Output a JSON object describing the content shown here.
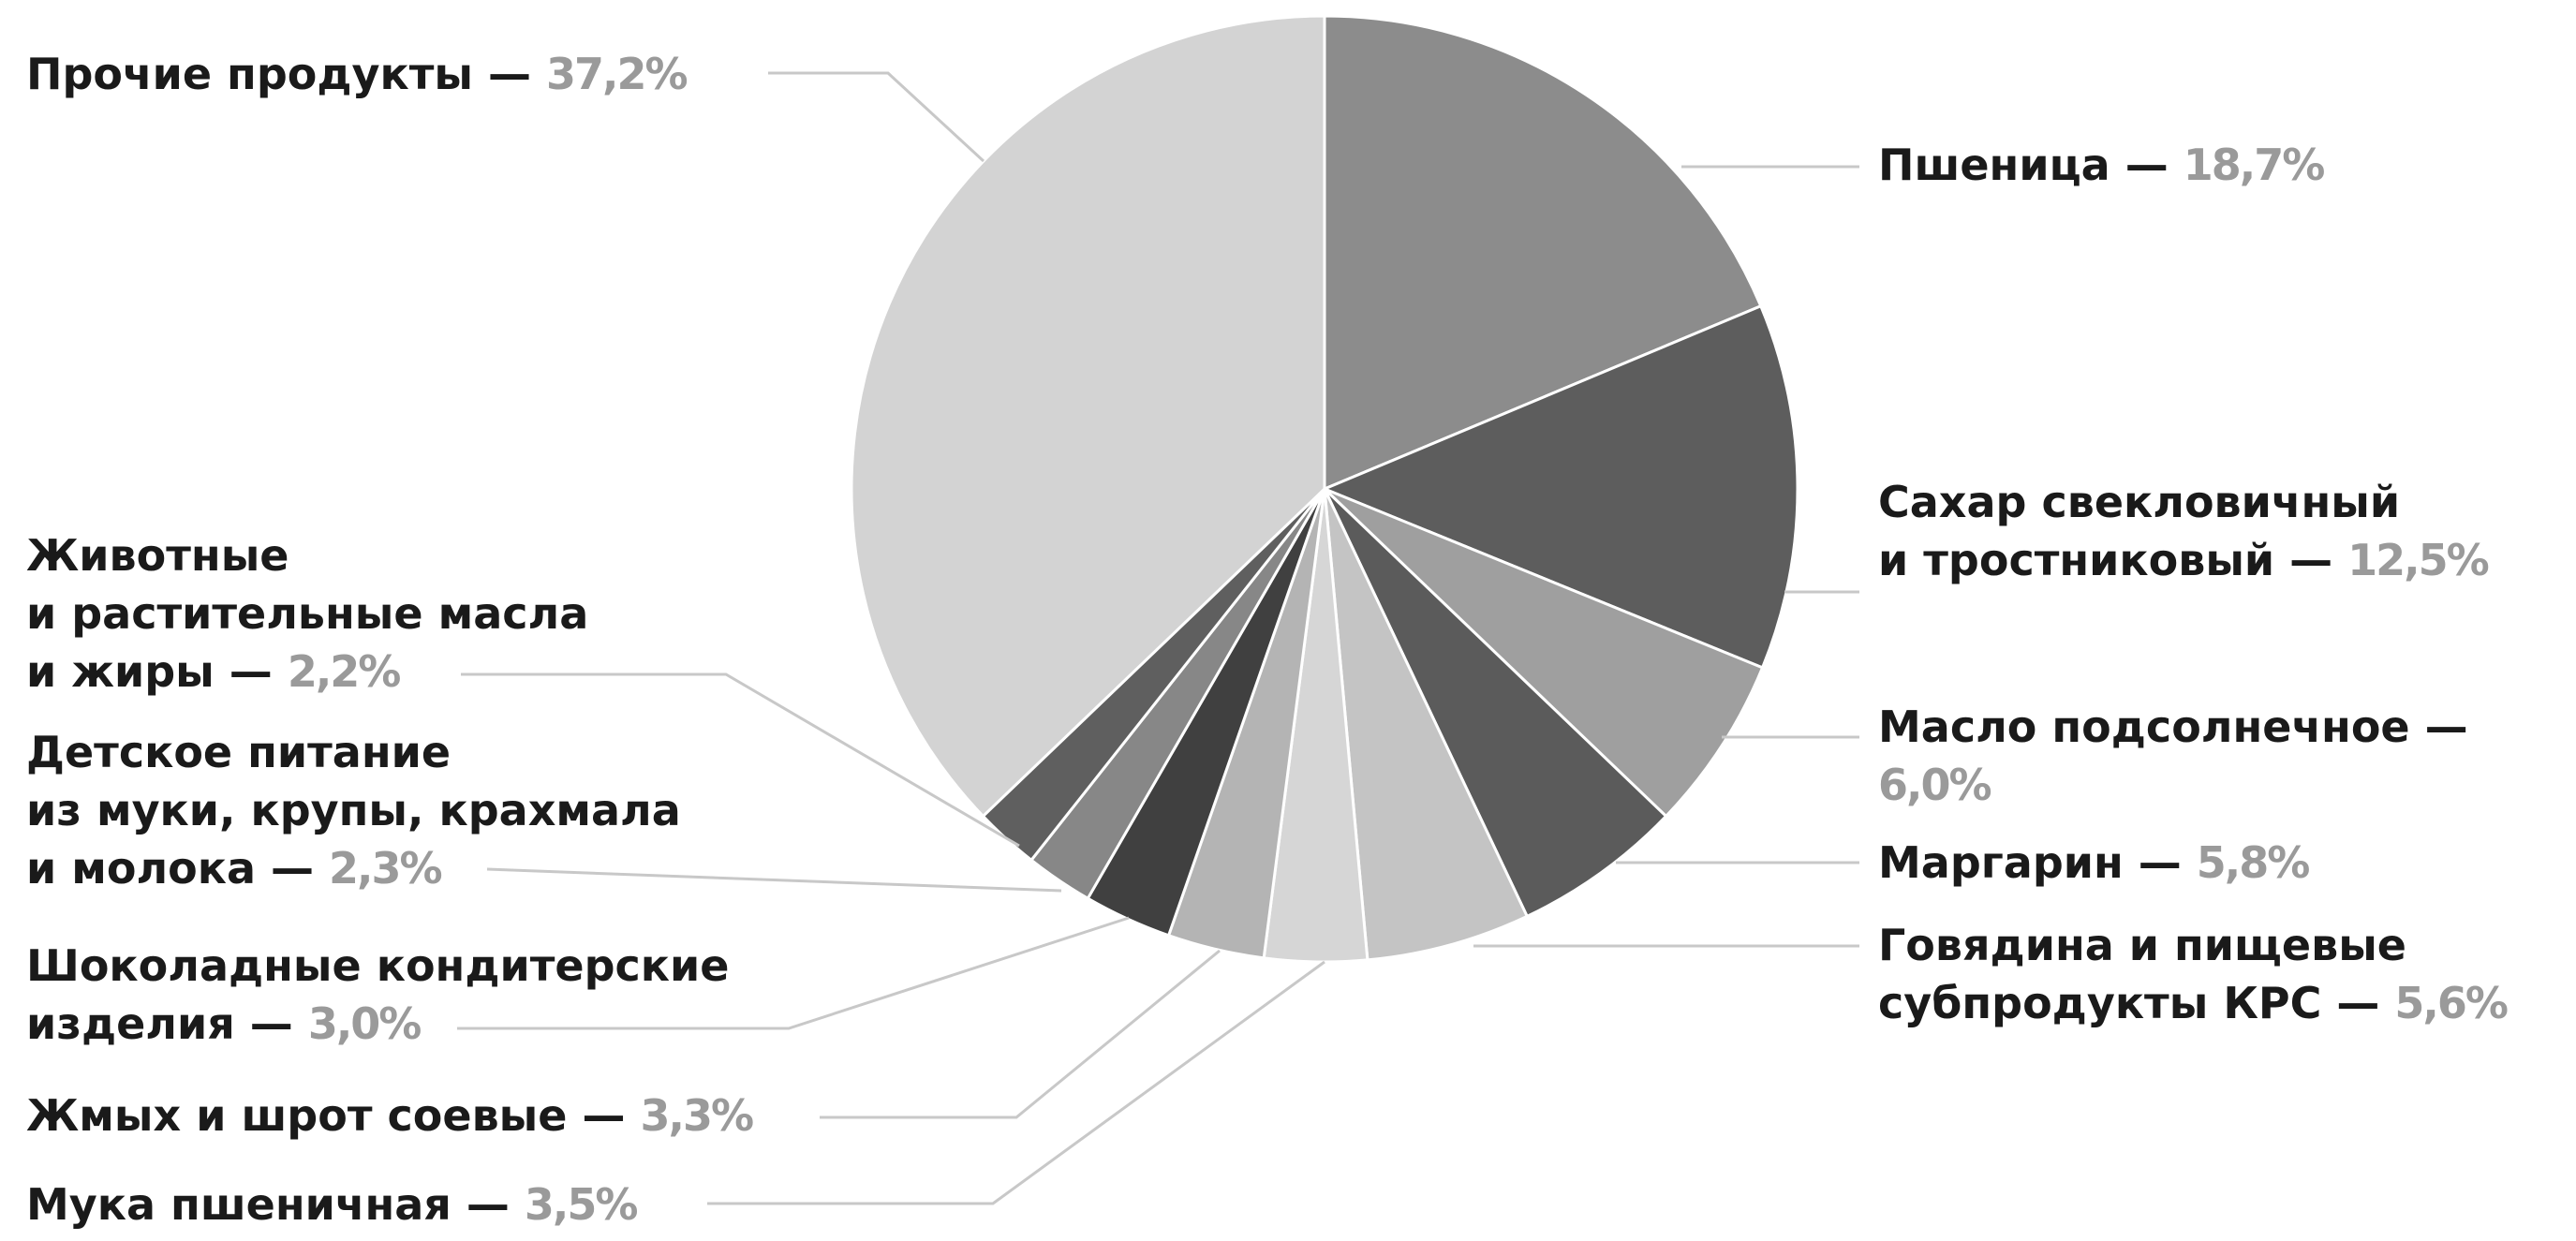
{
  "chart_data": {
    "type": "pie",
    "title": "",
    "start_angle_deg": 0,
    "direction": "clockwise",
    "unit": "%",
    "slices": [
      {
        "name": "Пшеница",
        "value": 18.7,
        "display": "18,7%",
        "color": "#8c8c8c"
      },
      {
        "name": "Сахар свекловичный и тростниковый",
        "value": 12.5,
        "display": "12,5%",
        "color": "#5d5d5d"
      },
      {
        "name": "Масло подсолнечное",
        "value": 6.0,
        "display": "6,0%",
        "color": "#9f9f9f"
      },
      {
        "name": "Маргарин",
        "value": 5.8,
        "display": "5,8%",
        "color": "#5b5b5b"
      },
      {
        "name": "Говядина и пищевые субпродукты КРС",
        "value": 5.6,
        "display": "5,6%",
        "color": "#c4c4c4"
      },
      {
        "name": "Мука пшеничная",
        "value": 3.5,
        "display": "3,5%",
        "color": "#d6d6d6"
      },
      {
        "name": "Жмых и шрот соевые",
        "value": 3.3,
        "display": "3,3%",
        "color": "#b4b4b4"
      },
      {
        "name": "Шоколадные кондитерские изделия",
        "value": 3.0,
        "display": "3,0%",
        "color": "#404040"
      },
      {
        "name": "Детское питание из муки, крупы, крахмала и молока",
        "value": 2.3,
        "display": "2,3%",
        "color": "#878787"
      },
      {
        "name": "Животные и растительные масла и жиры",
        "value": 2.2,
        "display": "2,2%",
        "color": "#5f5f5f"
      },
      {
        "name": "Прочие продукты",
        "value": 37.2,
        "display": "37,2%",
        "color": "#d3d3d3"
      }
    ]
  },
  "labels": {
    "wheat": {
      "line1": "Пшеница —",
      "pct": "18,7%"
    },
    "sugar": {
      "line1": "Сахар свекловичный",
      "line2": "и тростниковый —",
      "pct": "12,5%"
    },
    "sunoil": {
      "line1": "Масло подсолнечное —",
      "pct": "6,0%"
    },
    "margarine": {
      "line1": "Маргарин —",
      "pct": "5,8%"
    },
    "beef": {
      "line1": "Говядина и пищевые",
      "line2": "субпродукты КРС —",
      "pct": "5,6%"
    },
    "flour": {
      "line1": "Мука пшеничная —",
      "pct": "3,5%"
    },
    "soy": {
      "line1": "Жмых и шрот соевые —",
      "pct": "3,3%"
    },
    "choco": {
      "line1": "Шоколадные кондитерские",
      "line2": "изделия —",
      "pct": "3,0%"
    },
    "baby": {
      "line1": "Детское питание",
      "line2": "из муки, крупы, крахмала",
      "line3": "и молока —",
      "pct": "2,3%"
    },
    "fats": {
      "line1": "Животные",
      "line2": "и растительные масла",
      "line3": "и жиры —",
      "pct": "2,2%"
    },
    "other": {
      "line1": "Прочие продукты —",
      "pct": "37,2%"
    }
  }
}
